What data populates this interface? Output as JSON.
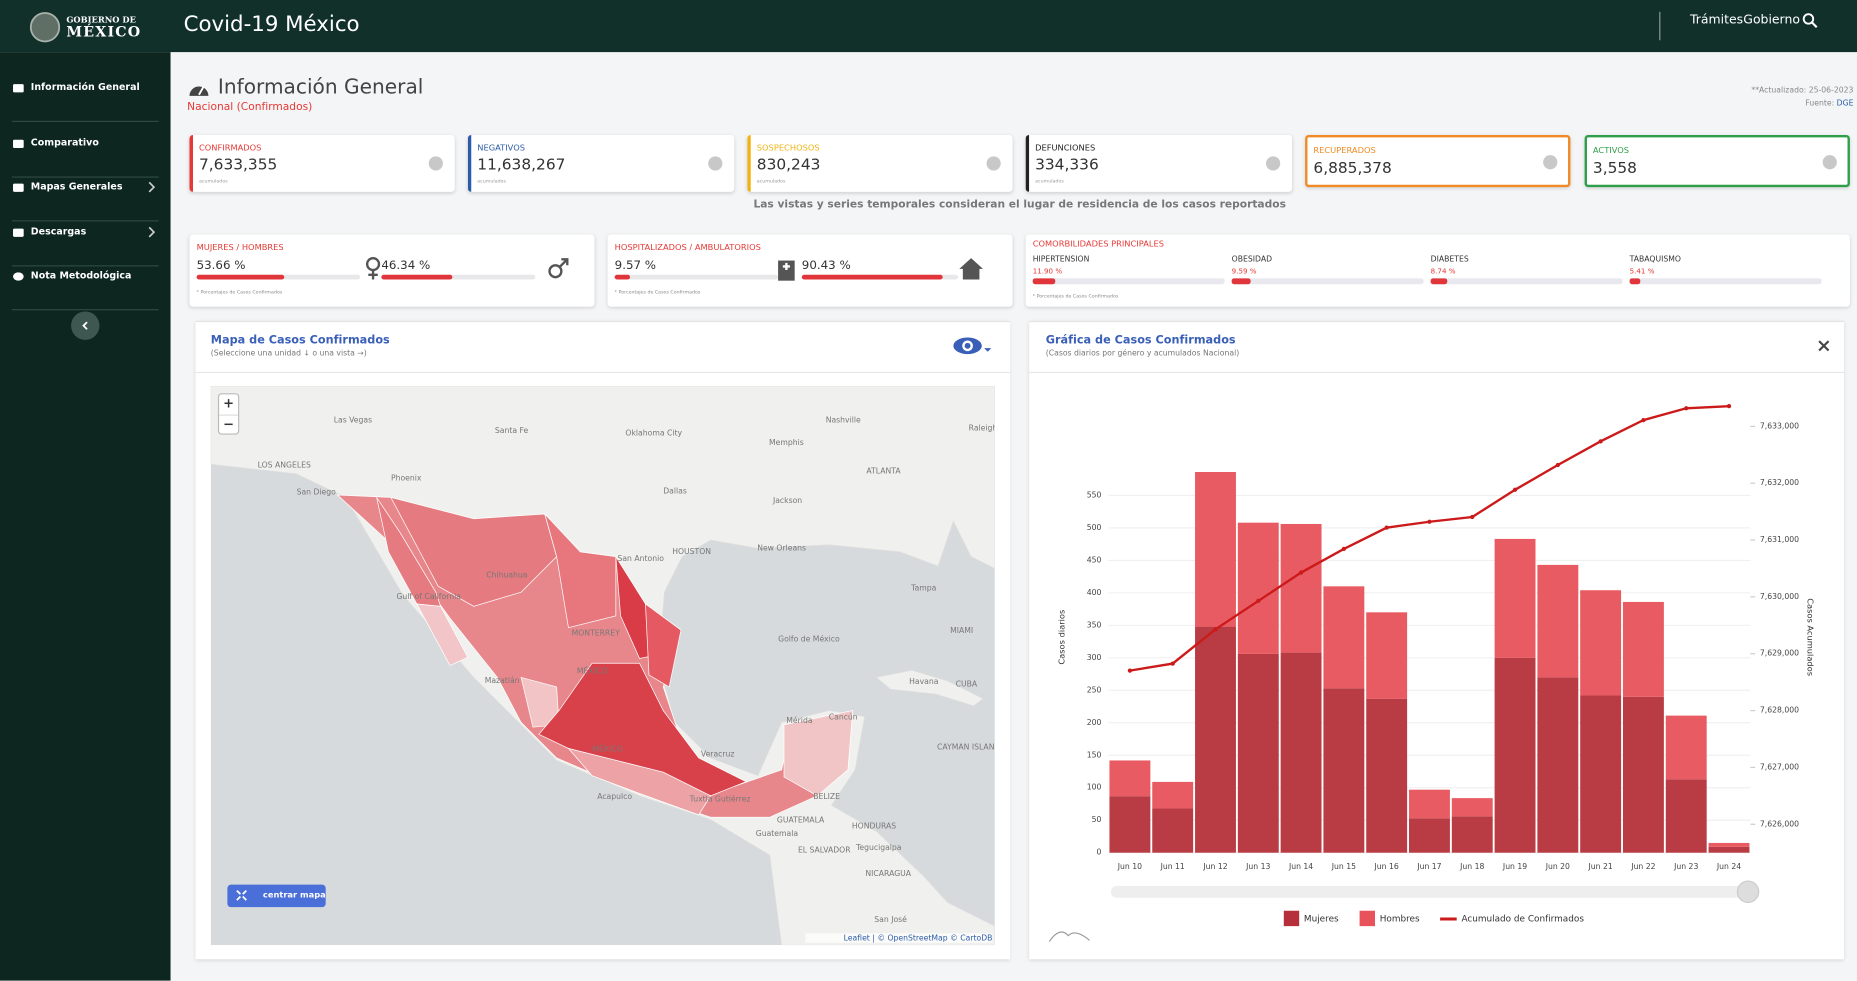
{
  "header": {
    "logo_top": "GOBIERNO DE",
    "logo_bottom": "MÉXICO",
    "title": "Covid-19 México",
    "links": [
      "Trámites",
      "Gobierno"
    ]
  },
  "sidebar": {
    "items": [
      "Información General",
      "Comparativo",
      "Mapas Generales",
      "Descargas",
      "Nota Metodológica"
    ]
  },
  "page": {
    "title": "Información General",
    "subtitle": "Nacional (Confirmados)",
    "updated": "**Actualizado: 25-06-2023",
    "source_label": "Fuente:",
    "source": "DGE"
  },
  "cards": [
    {
      "label": "CONFIRMADOS",
      "value": "7,633,355",
      "note": "acumulados",
      "color": "#e53935"
    },
    {
      "label": "NEGATIVOS",
      "value": "11,638,267",
      "note": "acumulados",
      "color": "#2c5ba8"
    },
    {
      "label": "SOSPECHOSOS",
      "value": "830,243",
      "note": "acumulados",
      "color": "#f2b311"
    },
    {
      "label": "DEFUNCIONES",
      "value": "334,336",
      "note": "acumulados",
      "color": "#222222"
    },
    {
      "label": "RECUPERADOS",
      "value": "6,885,378",
      "color": "#f08a24"
    },
    {
      "label": "ACTIVOS",
      "value": "3,558",
      "color": "#2e9e48"
    }
  ],
  "notice": "Las vistas y series temporales consideran el lugar de residencia de los casos reportados",
  "ratios": [
    {
      "title": "MUJERES / HOMBRES",
      "values": [
        53.66,
        46.34
      ],
      "value_labels": [
        "53.66 %",
        "46.34 %"
      ],
      "note": "* Porcentajes de Casos Confirmados"
    },
    {
      "title": "HOSPITALIZADOS / AMBULATORIOS",
      "values": [
        9.57,
        90.43
      ],
      "value_labels": [
        "9.57 %",
        "90.43 %"
      ],
      "note": "* Porcentajes de Casos Confirmados"
    }
  ],
  "comorbidities": {
    "title": "COMORBILIDADES PRINCIPALES",
    "categories": [
      "HIPERTENSION",
      "OBESIDAD",
      "DIABETES",
      "TABAQUISMO"
    ],
    "values": [
      11.9,
      9.59,
      8.74,
      5.41
    ],
    "value_labels": [
      "11.90 %",
      "9.59 %",
      "8.74 %",
      "5.41 %"
    ],
    "note": "* Porcentajes de Casos Confirmados"
  },
  "map": {
    "title": "Mapa de Casos Confirmados",
    "subtitle": "(Seleccione una unidad ↓ o una vista →)",
    "zoom": [
      "+",
      "−"
    ],
    "button": "centrar mapa",
    "attribution": "Leaflet | © OpenStreetMap © CartoDB",
    "labels": [
      "Las Vegas",
      "Santa Fe",
      "Oklahoma City",
      "Memphis",
      "Nashville",
      "Raleigh",
      "LOS ANGELES",
      "San Diego",
      "Phoenix",
      "Dallas",
      "ATLANTA",
      "Jackson",
      "HOUSTON",
      "San Antonio",
      "New Orleans",
      "Tampa",
      "Chihuahua",
      "Gulf of California",
      "MONTERREY",
      "Golfo de México",
      "MIAMI",
      "Mazatlán",
      "MÉXICO",
      "Havana",
      "CUBA",
      "Mérida",
      "Cancún",
      "MÉXICO",
      "Veracruz",
      "Acapulco",
      "Tuxtla Gutiérrez",
      "BELIZE",
      "CAYMAN ISLANDS",
      "GUATEMALA",
      "HONDURAS",
      "Guatemala",
      "EL SALVADOR",
      "Tegucigalpa",
      "NICARAGUA",
      "San José"
    ]
  },
  "chart_data": {
    "type": "bar",
    "stacked": true,
    "title": "Gráfica de Casos Confirmados",
    "subtitle": "(Casos diarios por género y acumulados Nacional)",
    "ylabel": "Casos diarios",
    "y2label": "Casos Acumulados",
    "categories": [
      "Jun 10",
      "Jun 11",
      "Jun 12",
      "Jun 13",
      "Jun 14",
      "Jun 15",
      "Jun 16",
      "Jun 17",
      "Jun 18",
      "Jun 19",
      "Jun 20",
      "Jun 21",
      "Jun 22",
      "Jun 23",
      "Jun 24"
    ],
    "series": [
      {
        "name": "Mujeres",
        "color": "#b5303a",
        "values": [
          87,
          68,
          348,
          306,
          308,
          253,
          237,
          53,
          56,
          300,
          270,
          242,
          240,
          113,
          9
        ]
      },
      {
        "name": "Hombres",
        "color": "#e8525a",
        "values": [
          55,
          41,
          238,
          202,
          198,
          157,
          133,
          44,
          28,
          183,
          173,
          162,
          146,
          98,
          6
        ]
      },
      {
        "name": "Acumulado de Confirmados",
        "color": "#cc1a1a",
        "axis": "y2",
        "type": "line",
        "values": [
          7628703,
          7628827,
          7629430,
          7629929,
          7630428,
          7630844,
          7631218,
          7631322,
          7631405,
          7631884,
          7632320,
          7632736,
          7633110,
          7633318,
          7633355
        ]
      }
    ],
    "ylim": [
      0,
      700
    ],
    "yticks": [
      0,
      50,
      100,
      150,
      200,
      250,
      300,
      350,
      400,
      450,
      500,
      550
    ],
    "y2lim": [
      7625500,
      7633500
    ],
    "y2ticks": [
      {
        "value": 7626000,
        "label": "7,626,000"
      },
      {
        "value": 7627000,
        "label": "7,627,000"
      },
      {
        "value": 7628000,
        "label": "7,628,000"
      },
      {
        "value": 7629000,
        "label": "7,629,000"
      },
      {
        "value": 7630000,
        "label": "7,630,000"
      },
      {
        "value": 7631000,
        "label": "7,631,000"
      },
      {
        "value": 7632000,
        "label": "7,632,000"
      },
      {
        "value": 7633000,
        "label": "7,633,000"
      }
    ],
    "grid": true,
    "legend": "bottom"
  }
}
